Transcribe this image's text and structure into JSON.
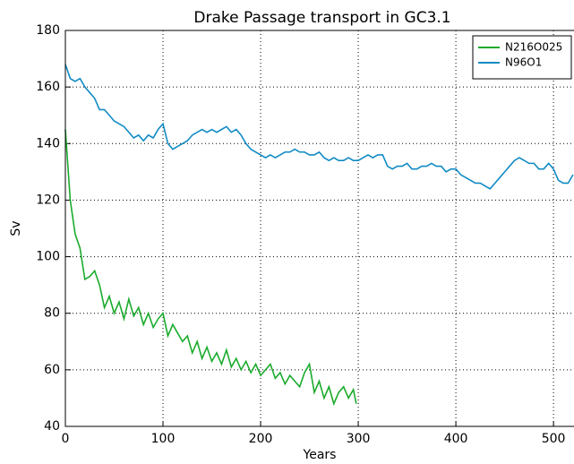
{
  "chart_data": {
    "type": "line",
    "title": "Drake Passage transport in GC3.1",
    "xlabel": "Years",
    "ylabel": "Sv",
    "xlim": [
      0,
      521
    ],
    "ylim": [
      40,
      180
    ],
    "xticks": [
      0,
      100,
      200,
      300,
      400,
      500
    ],
    "yticks": [
      40,
      60,
      80,
      100,
      120,
      140,
      160,
      180
    ],
    "grid": true,
    "legend": "upper right",
    "series": [
      {
        "name": "N216O025",
        "color": "#1aab2c",
        "x": [
          0,
          5,
          10,
          15,
          20,
          25,
          30,
          35,
          40,
          45,
          50,
          55,
          60,
          65,
          70,
          75,
          80,
          85,
          90,
          95,
          100,
          105,
          110,
          115,
          120,
          125,
          130,
          135,
          140,
          145,
          150,
          155,
          160,
          165,
          170,
          175,
          180,
          185,
          190,
          195,
          200,
          205,
          210,
          215,
          220,
          225,
          230,
          235,
          240,
          245,
          250,
          255,
          260,
          265,
          270,
          275,
          280,
          285,
          290,
          295,
          298
        ],
        "values": [
          145,
          120,
          108,
          103,
          92,
          93,
          95,
          90,
          82,
          86,
          80,
          84,
          78,
          85,
          79,
          82,
          76,
          80,
          75,
          78,
          80,
          72,
          76,
          73,
          70,
          72,
          66,
          70,
          64,
          68,
          63,
          66,
          62,
          67,
          61,
          64,
          60,
          63,
          59,
          62,
          58,
          60,
          62,
          57,
          59,
          55,
          58,
          56,
          54,
          59,
          62,
          52,
          56,
          50,
          54,
          48,
          52,
          54,
          50,
          53,
          48
        ]
      },
      {
        "name": "N96O1",
        "color": "#118bc4",
        "x": [
          0,
          5,
          10,
          15,
          20,
          25,
          30,
          35,
          40,
          45,
          50,
          55,
          60,
          65,
          70,
          75,
          80,
          85,
          90,
          95,
          100,
          105,
          110,
          115,
          120,
          125,
          130,
          135,
          140,
          145,
          150,
          155,
          160,
          165,
          170,
          175,
          180,
          185,
          190,
          195,
          200,
          205,
          210,
          215,
          220,
          225,
          230,
          235,
          240,
          245,
          250,
          255,
          260,
          265,
          270,
          275,
          280,
          285,
          290,
          295,
          300,
          305,
          310,
          315,
          320,
          325,
          330,
          335,
          340,
          345,
          350,
          355,
          360,
          365,
          370,
          375,
          380,
          385,
          390,
          395,
          400,
          405,
          410,
          415,
          420,
          425,
          430,
          435,
          440,
          445,
          450,
          455,
          460,
          465,
          470,
          475,
          480,
          485,
          490,
          495,
          500,
          505,
          510,
          515,
          520
        ],
        "values": [
          168,
          163,
          162,
          163,
          160,
          158,
          156,
          152,
          152,
          150,
          148,
          147,
          146,
          144,
          142,
          143,
          141,
          143,
          142,
          145,
          147,
          140,
          138,
          139,
          140,
          141,
          143,
          144,
          145,
          144,
          145,
          144,
          145,
          146,
          144,
          145,
          143,
          140,
          138,
          137,
          136,
          135,
          136,
          135,
          136,
          137,
          137,
          138,
          137,
          137,
          136,
          136,
          137,
          135,
          134,
          135,
          134,
          134,
          135,
          134,
          134,
          135,
          136,
          135,
          136,
          136,
          132,
          131,
          132,
          132,
          133,
          131,
          131,
          132,
          132,
          133,
          132,
          132,
          130,
          131,
          131,
          129,
          128,
          127,
          126,
          126,
          125,
          124,
          126,
          128,
          130,
          132,
          134,
          135,
          134,
          133,
          133,
          131,
          131,
          133,
          131,
          127,
          126,
          126,
          129
        ]
      }
    ]
  }
}
